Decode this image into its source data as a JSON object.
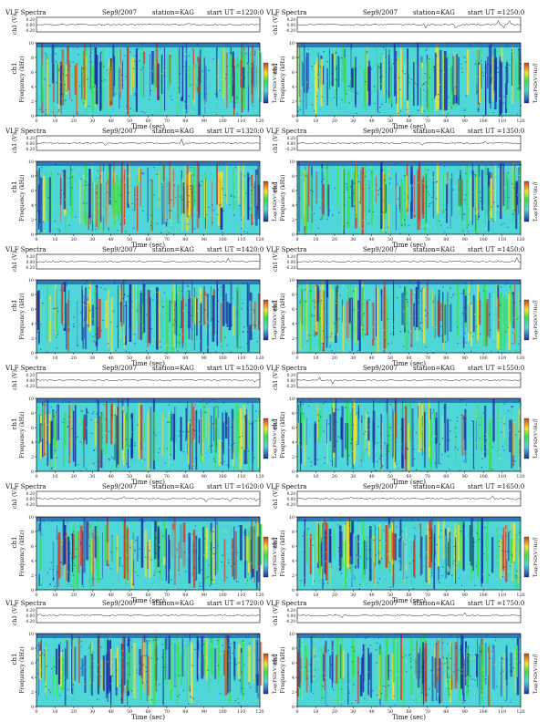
{
  "header": {
    "instrument": "VLF Spectra",
    "date": "Sep9/2007",
    "station": "station=KAG",
    "start_prefix": "start  UT  ="
  },
  "labels": {
    "xlabel": "Time  (sec)",
    "ylabel": "Frequency  (kHz)",
    "ch_label": "ch1",
    "voltage_label": "ch1 (V)",
    "colorbar_label": "Log(PSD(V²/Hz))"
  },
  "axes": {
    "x_ticks": [
      "0",
      "10",
      "20",
      "30",
      "40",
      "50",
      "60",
      "70",
      "80",
      "90",
      "100",
      "110",
      "120"
    ],
    "freq_ticks": [
      "0",
      "2",
      "4",
      "6",
      "8",
      "10"
    ],
    "voltage_ticks": [
      "0.20",
      "0.00",
      "-0.20"
    ],
    "xlim": [
      0,
      120
    ],
    "ylim": [
      0,
      10
    ],
    "voltage_lim": [
      -0.2,
      0.2
    ],
    "colorbar_ticks": [
      "-5",
      "-9"
    ]
  },
  "colors": {
    "psd_low": "#1a2fa0",
    "psd_mid": "#4fd6d8",
    "psd_green": "#3ce04a",
    "psd_yellow": "#f2e22c",
    "psd_high": "#d63b1f",
    "trace": "#222222"
  },
  "chart_data": [
    {
      "type": "heatmap",
      "start_ut": "1220:0",
      "intensity": 0.58,
      "xlim": [
        0,
        120
      ],
      "ylim": [
        0,
        10
      ]
    },
    {
      "type": "heatmap",
      "start_ut": "1250:0",
      "intensity": 0.3,
      "xlim": [
        0,
        120
      ],
      "ylim": [
        0,
        10
      ]
    },
    {
      "type": "heatmap",
      "start_ut": "1320:0",
      "intensity": 0.56,
      "xlim": [
        0,
        120
      ],
      "ylim": [
        0,
        10
      ]
    },
    {
      "type": "heatmap",
      "start_ut": "1350:0",
      "intensity": 0.55,
      "xlim": [
        0,
        120
      ],
      "ylim": [
        0,
        10
      ]
    },
    {
      "type": "heatmap",
      "start_ut": "1420:0",
      "intensity": 0.46,
      "xlim": [
        0,
        120
      ],
      "ylim": [
        0,
        10
      ]
    },
    {
      "type": "heatmap",
      "start_ut": "1450:0",
      "intensity": 0.54,
      "xlim": [
        0,
        120
      ],
      "ylim": [
        0,
        10
      ]
    },
    {
      "type": "heatmap",
      "start_ut": "1520:0",
      "intensity": 0.4,
      "xlim": [
        0,
        120
      ],
      "ylim": [
        0,
        10
      ]
    },
    {
      "type": "heatmap",
      "start_ut": "1550:0",
      "intensity": 0.34,
      "xlim": [
        0,
        120
      ],
      "ylim": [
        0,
        10
      ]
    },
    {
      "type": "heatmap",
      "start_ut": "1620:0",
      "intensity": 0.52,
      "xlim": [
        0,
        120
      ],
      "ylim": [
        0,
        10
      ]
    },
    {
      "type": "heatmap",
      "start_ut": "1650:0",
      "intensity": 0.46,
      "xlim": [
        0,
        120
      ],
      "ylim": [
        0,
        10
      ]
    },
    {
      "type": "heatmap",
      "start_ut": "1720:0",
      "intensity": 0.56,
      "xlim": [
        0,
        120
      ],
      "ylim": [
        0,
        10
      ]
    },
    {
      "type": "heatmap",
      "start_ut": "1750:0",
      "intensity": 0.5,
      "xlim": [
        0,
        120
      ],
      "ylim": [
        0,
        10
      ]
    }
  ]
}
